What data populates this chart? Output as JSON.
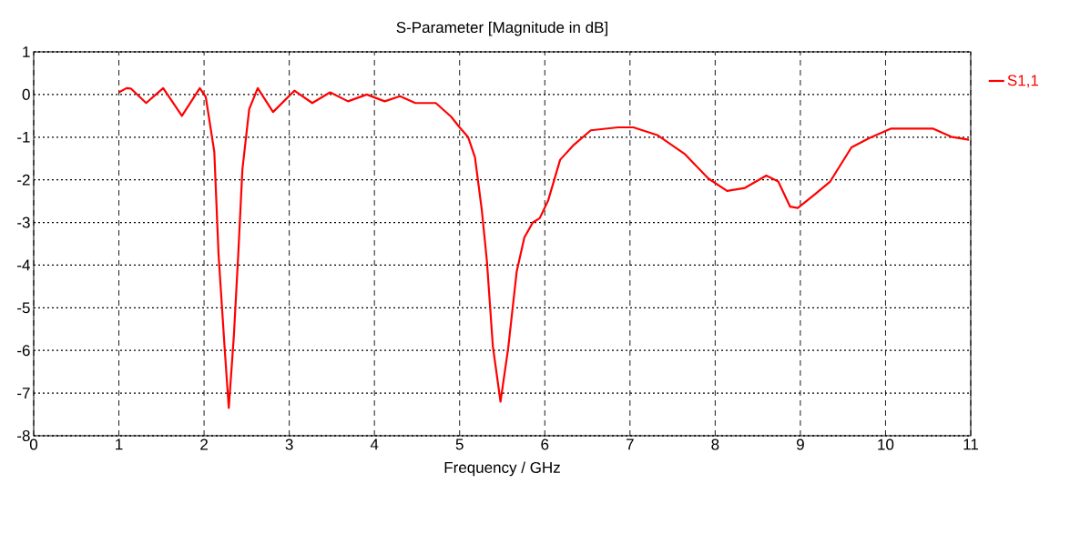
{
  "chart_data": {
    "type": "line",
    "title": "S-Parameter [Magnitude in dB]",
    "xlabel": "Frequency / GHz",
    "x": [
      1.0,
      1.09,
      1.14,
      1.32,
      1.52,
      1.74,
      1.95,
      2.02,
      2.12,
      2.17,
      2.24,
      2.29,
      2.35,
      2.4,
      2.45,
      2.53,
      2.63,
      2.81,
      3.06,
      3.27,
      3.48,
      3.69,
      3.91,
      4.12,
      4.3,
      4.48,
      4.72,
      4.9,
      5.0,
      5.1,
      5.18,
      5.26,
      5.32,
      5.39,
      5.48,
      5.57,
      5.67,
      5.76,
      5.86,
      5.94,
      6.04,
      6.18,
      6.33,
      6.54,
      6.86,
      7.04,
      7.32,
      7.64,
      7.92,
      8.14,
      8.35,
      8.6,
      8.74,
      8.88,
      8.97,
      9.17,
      9.35,
      9.6,
      9.81,
      10.06,
      10.56,
      10.77,
      10.98
    ],
    "series": [
      {
        "name": "S1,1",
        "color": "#ff0000",
        "values": [
          0.05,
          0.15,
          0.14,
          -0.2,
          0.15,
          -0.5,
          0.15,
          -0.06,
          -1.34,
          -3.75,
          -5.9,
          -7.35,
          -5.65,
          -3.8,
          -1.76,
          -0.34,
          0.15,
          -0.41,
          0.09,
          -0.2,
          0.05,
          -0.16,
          0.0,
          -0.16,
          -0.04,
          -0.2,
          -0.2,
          -0.52,
          -0.77,
          -1.0,
          -1.47,
          -2.7,
          -3.9,
          -5.9,
          -7.2,
          -5.95,
          -4.15,
          -3.35,
          -3.0,
          -2.9,
          -2.48,
          -1.53,
          -1.2,
          -0.84,
          -0.77,
          -0.77,
          -0.95,
          -1.39,
          -1.97,
          -2.26,
          -2.19,
          -1.9,
          -2.04,
          -2.63,
          -2.66,
          -2.34,
          -2.04,
          -1.24,
          -1.02,
          -0.8,
          -0.8,
          -0.99,
          -1.06
        ]
      }
    ],
    "xlim": [
      0,
      11
    ],
    "ylim": [
      -8,
      1
    ],
    "xticks": [
      0,
      1,
      2,
      3,
      4,
      5,
      6,
      7,
      8,
      9,
      10,
      11
    ],
    "yticks": [
      -8,
      -7,
      -6,
      -5,
      -4,
      -3,
      -2,
      -1,
      0,
      1
    ],
    "grid": true,
    "legend": "right",
    "marker": "none",
    "line_style": "solid"
  }
}
